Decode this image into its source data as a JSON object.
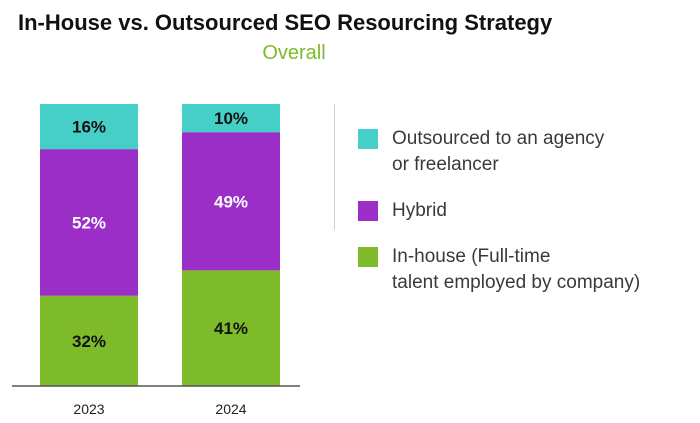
{
  "header": {
    "title": "In-House vs. Outsourced SEO Resourcing Strategy",
    "subtitle": "Overall"
  },
  "colors": {
    "subtitle": "#7dbb2a",
    "outsourced": "#45cfc7",
    "hybrid": "#9b2ec6",
    "inhouse": "#7dbb2a",
    "axis": "#555555"
  },
  "chart_data": {
    "type": "bar",
    "stacked": true,
    "categories": [
      "2023",
      "2024"
    ],
    "series": [
      {
        "name": "In-house (Full-time\ntalent employed by company)",
        "values": [
          32,
          41
        ],
        "labels": [
          "32%",
          "41%"
        ],
        "color": "#7dbb2a",
        "label_color": "#111111"
      },
      {
        "name": "Hybrid",
        "values": [
          52,
          49
        ],
        "labels": [
          "52%",
          "49%"
        ],
        "color": "#9b2ec6",
        "label_color": "#ffffff"
      },
      {
        "name": "Outsourced to an agency\nor freelancer",
        "values": [
          16,
          10
        ],
        "labels": [
          "16%",
          "10%"
        ],
        "color": "#45cfc7",
        "label_color": "#111111"
      }
    ],
    "ylim": [
      0,
      100
    ],
    "grid": false,
    "legend_position": "right"
  },
  "legend": {
    "items": [
      {
        "label": "Outsourced to an agency\nor freelancer",
        "color": "#45cfc7"
      },
      {
        "label": "Hybrid",
        "color": "#9b2ec6"
      },
      {
        "label": "In-house (Full-time\ntalent employed by company)",
        "color": "#7dbb2a"
      }
    ]
  }
}
